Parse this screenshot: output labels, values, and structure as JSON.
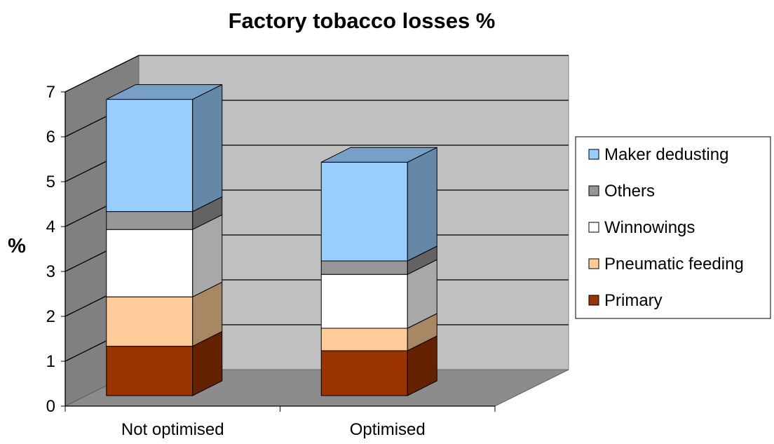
{
  "chart_data": {
    "type": "bar",
    "stacked": true,
    "three_d": true,
    "title": "Factory tobacco losses %",
    "xlabel": "",
    "ylabel": "%",
    "ylim": [
      0,
      7
    ],
    "yticks": [
      "0",
      "1",
      "2",
      "3",
      "4",
      "5",
      "6",
      "7"
    ],
    "grid": true,
    "legend_position": "right",
    "categories": [
      "Not optimised",
      "Optimised"
    ],
    "series": [
      {
        "name": "Primary",
        "values": [
          1.1,
          1.0
        ],
        "color": "#993300"
      },
      {
        "name": "Pneumatic feeding",
        "values": [
          1.1,
          0.5
        ],
        "color": "#FFCC99"
      },
      {
        "name": "Winnowings",
        "values": [
          1.5,
          1.2
        ],
        "color": "#FFFFFF"
      },
      {
        "name": "Others",
        "values": [
          0.4,
          0.3
        ],
        "color": "#969696"
      },
      {
        "name": "Maker dedusting",
        "values": [
          2.5,
          2.2
        ],
        "color": "#99CCFF"
      }
    ]
  }
}
